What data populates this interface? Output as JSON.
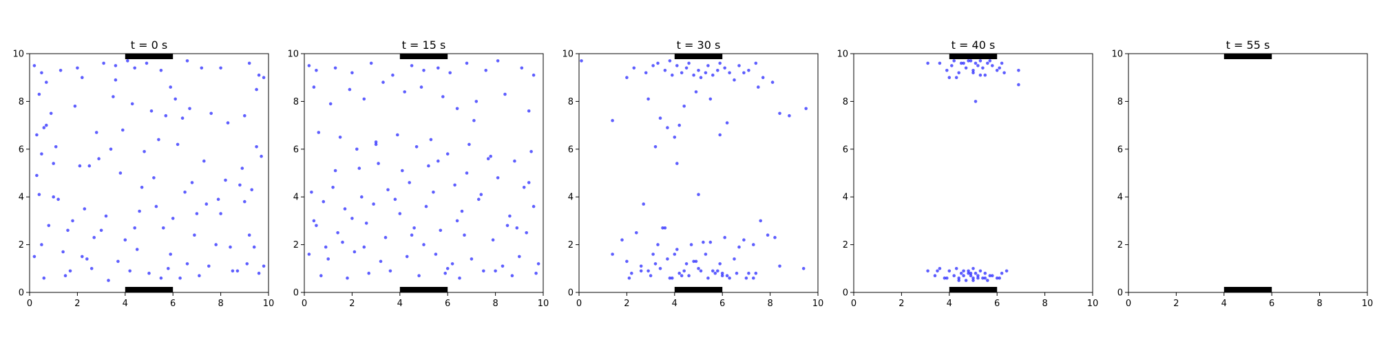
{
  "chart_data": [
    {
      "type": "scatter",
      "title": "t = 0 s",
      "xlim": [
        0,
        10
      ],
      "ylim": [
        0,
        10
      ],
      "xticks": [
        "0",
        "2",
        "4",
        "6",
        "8",
        "10"
      ],
      "yticks": [
        "0",
        "2",
        "4",
        "6",
        "8",
        "10"
      ],
      "grid": false,
      "exits": [
        {
          "x": [
            4,
            6
          ],
          "y": 10
        },
        {
          "x": [
            4,
            6
          ],
          "y": 0
        }
      ],
      "points_x": [
        0.2,
        0.5,
        0.7,
        1.3,
        2.0,
        2.2,
        3.1,
        3.6,
        4.1,
        4.4,
        4.9,
        5.5,
        5.9,
        6.6,
        7.2,
        8.0,
        9.2,
        9.6,
        9.8,
        0.4,
        0.9,
        1.9,
        2.8,
        3.5,
        4.3,
        5.1,
        5.7,
        6.4,
        7.6,
        8.3,
        9.0,
        9.5,
        0.3,
        0.6,
        1.1,
        2.5,
        3.4,
        4.8,
        6.2,
        7.3,
        8.9,
        9.7,
        0.5,
        1.0,
        2.1,
        3.8,
        5.2,
        6.8,
        8.2,
        9.3,
        0.4,
        1.2,
        2.3,
        3.2,
        4.6,
        5.3,
        6.0,
        7.0,
        8.0,
        9.0,
        0.8,
        1.6,
        2.7,
        4.0,
        5.6,
        6.9,
        7.8,
        9.4,
        0.2,
        1.4,
        2.4,
        3.7,
        4.5,
        5.9,
        6.6,
        7.5,
        8.5,
        9.6,
        0.6,
        1.5,
        2.6,
        3.3,
        4.2,
        5.0,
        5.8,
        6.3,
        7.1,
        8.7,
        9.1,
        9.8,
        0.3,
        1.8,
        3.0,
        4.7,
        6.5,
        7.9,
        0.7,
        2.9,
        5.4,
        8.8,
        1.0,
        3.9,
        6.1,
        9.5,
        0.5,
        2.2,
        4.4,
        7.4,
        9.2,
        1.7,
        5.5,
        8.4,
        3.6,
        6.7
      ],
      "points_y": [
        9.5,
        9.2,
        8.8,
        9.3,
        9.4,
        9.0,
        9.6,
        9.5,
        9.7,
        9.4,
        9.6,
        9.3,
        8.6,
        9.7,
        9.4,
        9.4,
        9.6,
        9.1,
        9.0,
        8.3,
        7.5,
        7.8,
        6.7,
        8.2,
        7.9,
        7.6,
        7.4,
        7.3,
        7.5,
        7.1,
        7.4,
        8.5,
        6.6,
        6.9,
        6.1,
        5.3,
        6.0,
        5.9,
        6.2,
        5.5,
        5.2,
        5.7,
        5.8,
        5.4,
        5.3,
        5.0,
        4.8,
        4.6,
        4.7,
        4.3,
        4.1,
        3.9,
        3.5,
        3.2,
        3.4,
        3.6,
        3.1,
        3.3,
        3.3,
        3.8,
        2.8,
        2.6,
        2.3,
        2.2,
        2.7,
        2.4,
        2.0,
        1.9,
        1.5,
        1.7,
        1.4,
        1.3,
        1.8,
        1.6,
        1.2,
        1.1,
        0.9,
        0.8,
        0.6,
        0.7,
        1.0,
        0.5,
        0.9,
        0.8,
        1.0,
        0.6,
        0.7,
        0.9,
        1.2,
        1.1,
        4.9,
        3.0,
        2.6,
        4.4,
        4.2,
        3.9,
        7.0,
        5.6,
        6.4,
        4.5,
        4.0,
        6.8,
        8.1,
        6.1,
        2.0,
        1.5,
        2.7,
        3.7,
        2.4,
        0.9,
        0.6,
        1.9,
        8.9,
        7.7
      ],
      "point_color": "#1a1aff",
      "exit_color": "#000000"
    },
    {
      "type": "scatter",
      "title": "t = 15 s",
      "xlim": [
        0,
        10
      ],
      "ylim": [
        0,
        10
      ],
      "xticks": [
        "0",
        "2",
        "4",
        "6",
        "8",
        "10"
      ],
      "yticks": [
        "0",
        "2",
        "4",
        "6",
        "8",
        "10"
      ],
      "grid": false,
      "exits": [
        {
          "x": [
            4,
            6
          ],
          "y": 10
        },
        {
          "x": [
            4,
            6
          ],
          "y": 0
        }
      ],
      "points_x": [
        0.2,
        0.5,
        1.3,
        2.0,
        2.8,
        3.7,
        4.5,
        5.0,
        5.6,
        6.1,
        6.8,
        7.6,
        8.1,
        9.1,
        9.6,
        0.4,
        1.1,
        1.9,
        2.5,
        3.3,
        4.2,
        4.9,
        5.8,
        6.4,
        7.2,
        8.4,
        9.4,
        0.6,
        1.5,
        2.2,
        3.0,
        3.9,
        4.7,
        5.3,
        6.0,
        6.9,
        7.8,
        8.8,
        9.5,
        0.3,
        1.2,
        2.4,
        3.5,
        4.4,
        5.4,
        6.3,
        7.4,
        8.1,
        9.2,
        0.8,
        1.7,
        2.9,
        4.0,
        5.1,
        6.6,
        7.3,
        8.6,
        9.6,
        0.5,
        1.4,
        2.6,
        3.4,
        4.6,
        5.7,
        6.7,
        7.9,
        8.9,
        9.3,
        0.2,
        1.0,
        2.1,
        3.2,
        4.3,
        5.5,
        6.2,
        7.0,
        8.3,
        9.0,
        0.7,
        1.8,
        2.7,
        3.6,
        4.8,
        5.9,
        6.5,
        7.5,
        8.7,
        9.7,
        0.4,
        1.6,
        2.3,
        3.1,
        4.1,
        5.2,
        6.8,
        7.7,
        9.4,
        0.9,
        2.0,
        3.8,
        5.0,
        6.0,
        8.0,
        9.8,
        1.3,
        3.0,
        4.5,
        6.4,
        8.5,
        2.5,
        5.6,
        7.1
      ],
      "points_y": [
        9.5,
        9.3,
        9.4,
        9.2,
        9.6,
        9.1,
        9.5,
        9.3,
        9.4,
        9.2,
        9.6,
        9.3,
        9.7,
        9.4,
        9.1,
        8.6,
        7.9,
        8.5,
        8.1,
        8.8,
        8.4,
        8.6,
        8.2,
        7.7,
        8.0,
        8.3,
        7.6,
        6.7,
        6.5,
        6.0,
        6.3,
        6.6,
        6.1,
        6.4,
        5.8,
        6.2,
        5.7,
        5.5,
        5.9,
        4.2,
        4.4,
        4.0,
        4.3,
        4.6,
        4.2,
        4.5,
        4.1,
        4.8,
        4.4,
        3.8,
        3.5,
        3.7,
        3.3,
        3.6,
        3.4,
        3.9,
        3.2,
        3.6,
        2.8,
        2.5,
        2.9,
        2.3,
        2.7,
        2.6,
        2.4,
        2.2,
        2.7,
        2.5,
        1.6,
        1.4,
        1.7,
        1.3,
        1.5,
        1.6,
        1.2,
        1.4,
        1.1,
        1.5,
        0.7,
        0.6,
        0.8,
        0.9,
        0.7,
        0.8,
        0.6,
        0.9,
        0.7,
        0.8,
        3.0,
        2.1,
        5.2,
        5.4,
        5.1,
        5.3,
        5.0,
        5.6,
        4.6,
        1.9,
        3.1,
        3.9,
        2.0,
        1.0,
        0.9,
        1.2,
        5.1,
        6.2,
        2.4,
        3.0,
        2.8,
        1.9,
        5.5,
        7.2
      ]
    },
    {
      "type": "scatter",
      "title": "t = 30 s",
      "xlim": [
        0,
        10
      ],
      "ylim": [
        0,
        10
      ],
      "xticks": [
        "0",
        "2",
        "4",
        "6",
        "8",
        "10"
      ],
      "yticks": [
        "0",
        "2",
        "4",
        "6",
        "8",
        "10"
      ],
      "grid": false,
      "exits": [
        {
          "x": [
            4,
            6
          ],
          "y": 10
        },
        {
          "x": [
            4,
            6
          ],
          "y": 0
        }
      ],
      "points_x": [
        0.1,
        2.0,
        2.3,
        2.8,
        3.1,
        3.3,
        3.6,
        3.8,
        3.9,
        4.1,
        4.3,
        4.5,
        4.6,
        4.8,
        5.0,
        5.1,
        5.3,
        5.4,
        5.6,
        5.8,
        5.9,
        6.1,
        6.3,
        6.5,
        6.7,
        6.9,
        7.1,
        7.4,
        7.7,
        7.5,
        8.1,
        8.4,
        8.8,
        9.5,
        1.4,
        2.9,
        3.4,
        3.7,
        4.2,
        4.4,
        4.9,
        5.5,
        5.9,
        6.2,
        3.2,
        4.0,
        4.1,
        1.4,
        1.8,
        2.0,
        2.2,
        2.4,
        2.6,
        2.9,
        3.1,
        3.3,
        3.5,
        3.7,
        3.9,
        4.1,
        4.3,
        4.5,
        4.7,
        4.9,
        5.1,
        5.3,
        5.5,
        5.7,
        5.9,
        6.1,
        6.3,
        6.5,
        6.7,
        6.9,
        7.1,
        7.3,
        7.6,
        7.9,
        8.2,
        8.4,
        2.1,
        2.6,
        3.0,
        3.4,
        3.8,
        4.2,
        4.6,
        5.0,
        5.4,
        5.8,
        6.2,
        6.6,
        7.0,
        7.4,
        9.4,
        2.7,
        3.6,
        4.0,
        4.4,
        4.8,
        5.2,
        5.6,
        6.0,
        3.2,
        5.0,
        6.0,
        7.3
      ],
      "points_y": [
        9.7,
        9.0,
        9.4,
        9.2,
        9.5,
        9.6,
        9.3,
        9.7,
        9.1,
        9.5,
        9.2,
        9.4,
        9.6,
        9.1,
        9.3,
        9.0,
        9.2,
        9.5,
        9.1,
        9.3,
        9.6,
        9.4,
        9.2,
        8.9,
        9.5,
        9.2,
        9.3,
        9.6,
        9.0,
        8.6,
        8.8,
        7.5,
        7.4,
        7.7,
        7.2,
        8.1,
        7.3,
        6.9,
        7.0,
        7.8,
        8.4,
        8.1,
        6.6,
        7.1,
        6.1,
        6.5,
        5.4,
        1.6,
        2.2,
        1.3,
        0.8,
        2.5,
        1.1,
        0.9,
        1.6,
        2.0,
        2.7,
        1.4,
        0.6,
        1.8,
        0.7,
        1.2,
        2.0,
        1.3,
        0.9,
        1.6,
        2.1,
        0.8,
        1.2,
        2.3,
        0.6,
        1.4,
        1.9,
        2.2,
        0.8,
        2.0,
        3.0,
        2.4,
        2.3,
        1.1,
        0.6,
        0.9,
        0.7,
        1.0,
        0.6,
        0.8,
        0.7,
        1.0,
        0.6,
        0.9,
        0.7,
        0.8,
        0.6,
        0.8,
        1.0,
        3.7,
        2.7,
        1.6,
        0.9,
        1.3,
        2.1,
        0.9,
        0.7,
        1.2,
        4.1,
        0.8,
        0.6
      ]
    },
    {
      "type": "scatter",
      "title": "t = 40 s",
      "xlim": [
        0,
        10
      ],
      "ylim": [
        0,
        10
      ],
      "xticks": [
        "0",
        "2",
        "4",
        "6",
        "8",
        "10"
      ],
      "yticks": [
        "0",
        "2",
        "4",
        "6",
        "8",
        "10"
      ],
      "grid": false,
      "exits": [
        {
          "x": [
            4,
            6
          ],
          "y": 10
        },
        {
          "x": [
            4,
            6
          ],
          "y": 0
        }
      ],
      "points_x": [
        3.1,
        3.6,
        3.9,
        4.1,
        4.2,
        4.4,
        4.6,
        4.7,
        4.9,
        5.0,
        5.1,
        5.2,
        5.3,
        5.4,
        5.5,
        5.6,
        5.8,
        6.0,
        6.2,
        6.3,
        6.9,
        4.3,
        4.8,
        5.3,
        5.7,
        6.1,
        4.0,
        4.5,
        5.0,
        5.1,
        6.9,
        3.1,
        3.4,
        3.6,
        3.8,
        4.0,
        4.2,
        4.3,
        4.4,
        4.5,
        4.6,
        4.7,
        4.8,
        4.9,
        5.0,
        5.0,
        5.1,
        5.2,
        5.3,
        5.4,
        5.5,
        5.6,
        5.8,
        6.0,
        6.2,
        6.4,
        3.9,
        4.6,
        4.9,
        5.2,
        5.7,
        4.4,
        5.0,
        5.5,
        3.5,
        6.1,
        4.8
      ],
      "points_y": [
        9.6,
        9.6,
        9.3,
        9.5,
        9.7,
        9.2,
        9.6,
        9.4,
        9.7,
        9.3,
        9.6,
        9.5,
        9.7,
        9.4,
        9.1,
        9.6,
        9.5,
        9.3,
        9.6,
        9.2,
        9.3,
        9.0,
        9.7,
        9.1,
        9.7,
        9.4,
        9.0,
        9.6,
        9.2,
        8.0,
        8.7,
        0.9,
        0.7,
        1.0,
        0.6,
        0.9,
        0.7,
        1.0,
        0.6,
        0.8,
        0.7,
        0.5,
        0.9,
        0.7,
        1.0,
        0.6,
        0.8,
        0.7,
        0.9,
        0.6,
        0.8,
        0.5,
        0.7,
        0.6,
        0.8,
        0.9,
        0.6,
        0.9,
        0.8,
        0.6,
        0.7,
        0.5,
        0.5,
        0.6,
        0.9,
        0.6,
        0.8
      ]
    },
    {
      "type": "scatter",
      "title": "t = 55 s",
      "xlim": [
        0,
        10
      ],
      "ylim": [
        0,
        10
      ],
      "xticks": [
        "0",
        "2",
        "4",
        "6",
        "8",
        "10"
      ],
      "yticks": [
        "0",
        "2",
        "4",
        "6",
        "8",
        "10"
      ],
      "grid": false,
      "exits": [
        {
          "x": [
            4,
            6
          ],
          "y": 10
        },
        {
          "x": [
            4,
            6
          ],
          "y": 0
        }
      ],
      "points_x": [],
      "points_y": []
    }
  ]
}
